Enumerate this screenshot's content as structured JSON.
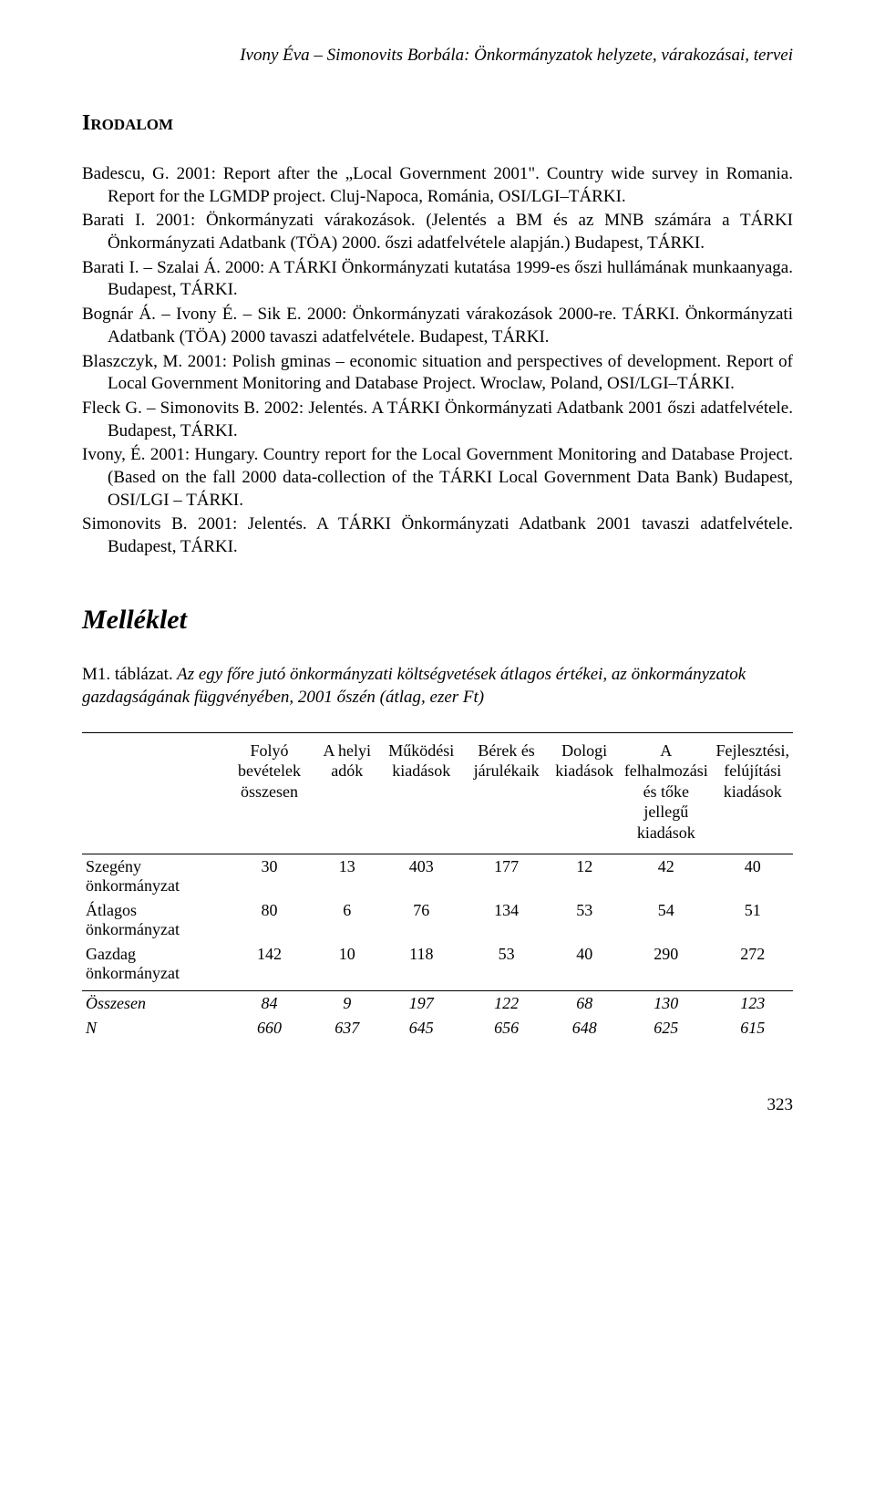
{
  "header": {
    "running_title": "Ivony Éva – Simonovits Borbála: Önkormányzatok helyzete, várakozásai, tervei"
  },
  "irodalom": {
    "heading": "Irodalom",
    "entries": [
      "Badescu, G. 2001: Report after the „Local Government 2001\". Country wide survey in Romania. Report for the LGMDP project. Cluj-Napoca, Románia, OSI/LGI–TÁRKI.",
      "Barati I. 2001: Önkormányzati várakozások. (Jelentés a BM és az MNB számára a TÁRKI Önkormányzati Adatbank (TÖA) 2000. őszi adatfelvétele alapján.) Budapest, TÁRKI.",
      "Barati I. – Szalai Á. 2000: A TÁRKI Önkormányzati kutatása 1999-es őszi hullámának munkaanyaga. Budapest, TÁRKI.",
      "Bognár Á. – Ivony É. – Sik E. 2000: Önkormányzati várakozások 2000-re. TÁRKI. Önkormányzati Adatbank (TÖA) 2000 tavaszi adatfelvétele. Budapest, TÁRKI.",
      "Blaszczyk, M. 2001: Polish gminas – economic situation and perspectives of development. Report of Local Government Monitoring and Database Project. Wroclaw, Poland, OSI/LGI–TÁRKI.",
      "Fleck G. – Simonovits B. 2002: Jelentés. A TÁRKI Önkormányzati Adatbank 2001 őszi adatfelvétele. Budapest, TÁRKI.",
      "Ivony, É. 2001: Hungary. Country report for the Local Government Monitoring and Database Project. (Based on the fall 2000 data-collection of the TÁRKI Local Government Data Bank) Budapest, OSI/LGI – TÁRKI.",
      "Simonovits B. 2001: Jelentés. A TÁRKI Önkormányzati Adatbank 2001 tavaszi adatfelvétele. Budapest, TÁRKI."
    ]
  },
  "melleklet": {
    "heading": "Melléklet",
    "table_caption_lead": "M1. táblázat.",
    "table_caption_desc": " Az egy főre jutó önkormányzati költségvetések átlagos értékei, az önkormányzatok gazdagságának függvényében, 2001 őszén (átlag, ezer Ft)"
  },
  "table": {
    "columns": [
      "",
      "Folyó bevételek összesen",
      "A helyi adók",
      "Működési kiadások",
      "Bérek és járulékaik",
      "Dologi kiadások",
      "A felhalmozási és tőke jellegű kiadások",
      "Fejlesztési, felújítási kiadások"
    ],
    "rows": [
      {
        "label": "Szegény önkormányzat",
        "values": [
          30,
          13,
          403,
          177,
          12,
          42,
          40
        ]
      },
      {
        "label": "Átlagos önkormányzat",
        "values": [
          80,
          6,
          76,
          134,
          53,
          54,
          51
        ]
      },
      {
        "label": "Gazdag önkormányzat",
        "values": [
          142,
          10,
          118,
          53,
          40,
          290,
          272
        ]
      }
    ],
    "totals": [
      {
        "label": "Összesen",
        "values": [
          84,
          9,
          197,
          122,
          68,
          130,
          123
        ]
      },
      {
        "label": "N",
        "values": [
          660,
          637,
          645,
          656,
          648,
          625,
          615
        ]
      }
    ],
    "col_widths_pct": [
      20,
      13,
      9,
      12,
      12,
      10,
      13,
      11
    ]
  },
  "page_number": "323",
  "style": {
    "font_family": "Times New Roman",
    "body_font_size_pt": 14,
    "heading_font_size_pt": 18,
    "melleklet_font_size_pt": 22,
    "text_color": "#000000",
    "background_color": "#ffffff",
    "rule_color": "#000000"
  }
}
